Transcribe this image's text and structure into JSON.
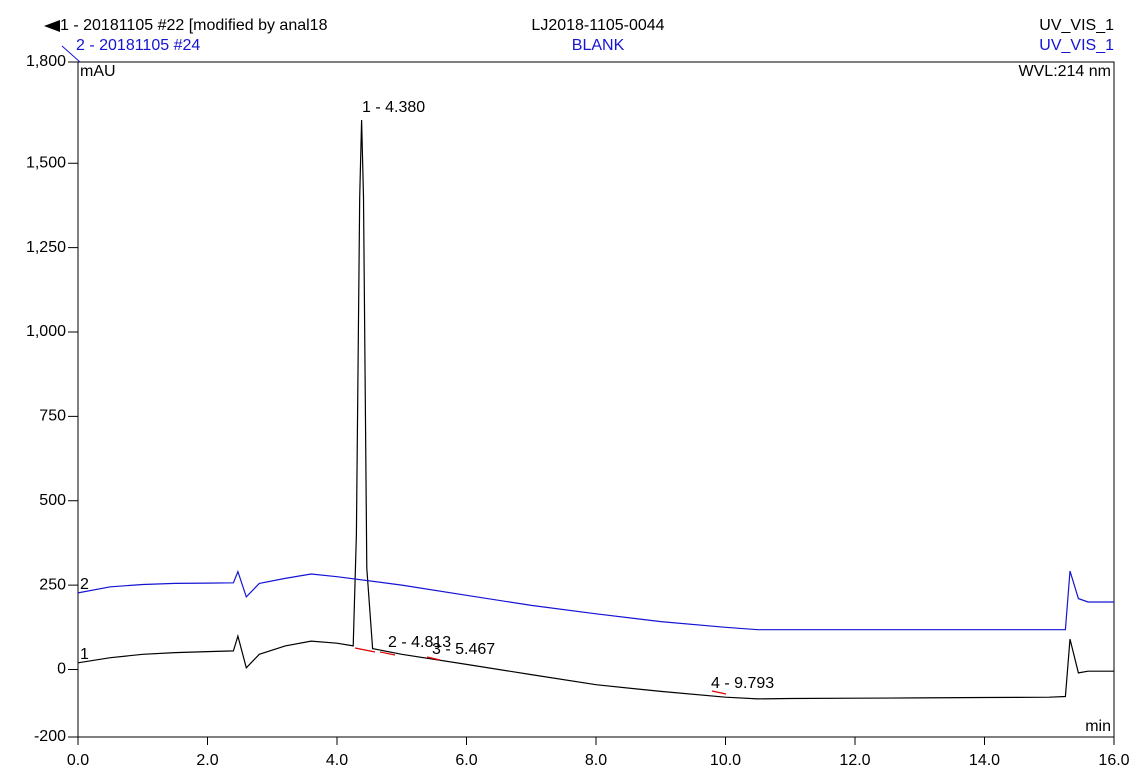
{
  "header": {
    "trace1_name": "1 - 20181105 #22 [modified by anal18",
    "trace1_sample": "LJ2018-1105-0044",
    "trace1_channel": "UV_VIS_1",
    "trace2_name": "2 - 20181105 #24",
    "trace2_sample": "BLANK",
    "trace2_channel": "UV_VIS_1",
    "wavelength": "WVL:214 nm"
  },
  "chart_data": {
    "type": "line",
    "y_label": "mAU",
    "x_label": "min",
    "xlim": [
      0,
      16
    ],
    "ylim": [
      -200,
      1800
    ],
    "xticks": [
      {
        "value": 0,
        "label": "0.0"
      },
      {
        "value": 2,
        "label": "2.0"
      },
      {
        "value": 4,
        "label": "4.0"
      },
      {
        "value": 6,
        "label": "6.0"
      },
      {
        "value": 8,
        "label": "8.0"
      },
      {
        "value": 10,
        "label": "10.0"
      },
      {
        "value": 12,
        "label": "12.0"
      },
      {
        "value": 14,
        "label": "14.0"
      },
      {
        "value": 16,
        "label": "16.0"
      }
    ],
    "yticks": [
      -200,
      0,
      250,
      500,
      750,
      {
        "value": 1000,
        "label": "1,000"
      },
      {
        "value": 1250,
        "label": "1,250"
      },
      {
        "value": 1500,
        "label": "1,500"
      },
      {
        "value": 1800,
        "label": "1,800"
      }
    ],
    "series": [
      {
        "name": "1",
        "color": "#000000",
        "x": [
          0,
          0.5,
          1,
          1.5,
          2,
          2.4,
          2.47,
          2.6,
          2.8,
          3.2,
          3.6,
          4.0,
          4.25,
          4.3,
          4.35,
          4.38,
          4.41,
          4.46,
          4.55,
          5,
          6,
          7,
          8,
          9,
          10,
          10.5,
          11,
          12,
          13,
          14,
          15,
          15.25,
          15.32,
          15.45,
          15.6,
          16
        ],
        "values": [
          20,
          35,
          45,
          50,
          53,
          55,
          99,
          5,
          45,
          70,
          84,
          78,
          70,
          400,
          1400,
          1628,
          1400,
          300,
          62,
          45,
          15,
          -15,
          -45,
          -65,
          -82,
          -87,
          -86,
          -85,
          -84,
          -83,
          -82,
          -80,
          90,
          -10,
          -5,
          -5
        ]
      },
      {
        "name": "2",
        "color": "#1414d2",
        "x": [
          0,
          0.5,
          1,
          1.5,
          2,
          2.4,
          2.47,
          2.6,
          2.8,
          3.2,
          3.6,
          4,
          5,
          6,
          7,
          8,
          9,
          10,
          10.5,
          11,
          12,
          13,
          14,
          15,
          15.25,
          15.32,
          15.45,
          15.6,
          16
        ],
        "values": [
          227,
          245,
          252,
          255,
          256,
          257,
          290,
          215,
          255,
          270,
          283,
          275,
          250,
          220,
          190,
          165,
          142,
          125,
          118,
          118,
          118,
          118,
          118,
          118,
          118,
          292,
          210,
          200,
          200
        ]
      }
    ],
    "annotations": [
      "1 - 4.380",
      "2 - 4.813",
      "3 - 5.467",
      "4 - 9.793"
    ]
  }
}
